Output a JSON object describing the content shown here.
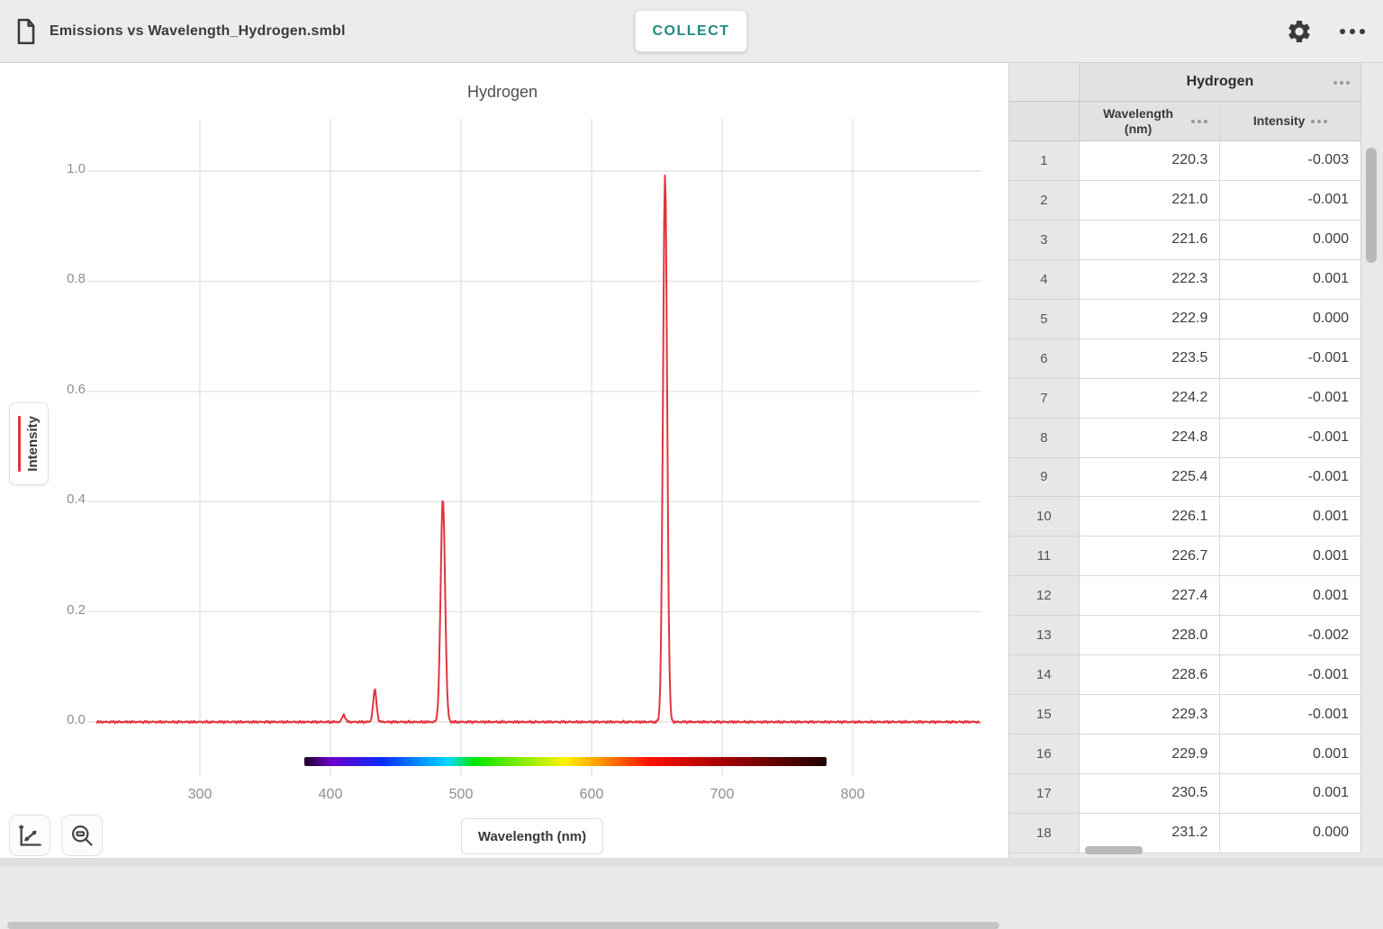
{
  "app": {
    "file_name": "Emissions vs Wavelength_Hydrogen.smbl",
    "collect_button": "COLLECT",
    "accent_teal": "#1e8a7e"
  },
  "graph": {
    "title": "Hydrogen",
    "x_axis_button": "Wavelength (nm)",
    "y_axis_button": "Intensity",
    "line_color": "#e0353f"
  },
  "chart_data": {
    "type": "line",
    "title": "Hydrogen",
    "xlabel": "Wavelength (nm)",
    "ylabel": "Intensity",
    "xlim": [
      220,
      898
    ],
    "ylim": [
      0,
      1.0
    ],
    "x_ticks": [
      300,
      400,
      500,
      600,
      700,
      800
    ],
    "x_tick_labels": [
      "300",
      "400",
      "500",
      "600",
      "700",
      "800"
    ],
    "y_ticks": [
      0,
      0.2,
      0.4,
      0.6,
      0.8,
      1.0
    ],
    "y_tick_labels": [
      "0.0",
      "0.2",
      "0.4",
      "0.6",
      "0.8",
      "1.0"
    ],
    "grid": true,
    "legend_position": "none",
    "series": [
      {
        "name": "Hydrogen",
        "color": "#e0353f",
        "baseline_intensity": 0.0,
        "noise_amplitude": 0.003,
        "peaks": [
          {
            "wavelength_nm": 410.2,
            "intensity": 0.013,
            "sigma_nm": 1.2
          },
          {
            "wavelength_nm": 434.0,
            "intensity": 0.058,
            "sigma_nm": 1.3
          },
          {
            "wavelength_nm": 486.1,
            "intensity": 0.405,
            "sigma_nm": 1.7
          },
          {
            "wavelength_nm": 656.3,
            "intensity": 0.993,
            "sigma_nm": 1.6
          }
        ]
      }
    ],
    "spectrum_bar": {
      "range_nm": [
        380,
        780
      ],
      "stops": [
        {
          "pos": 0.0,
          "color": "#1b0026"
        },
        {
          "pos": 0.05,
          "color": "#6a00c8"
        },
        {
          "pos": 0.15,
          "color": "#0b2cff"
        },
        {
          "pos": 0.275,
          "color": "#00d9ff"
        },
        {
          "pos": 0.325,
          "color": "#00e600"
        },
        {
          "pos": 0.5,
          "color": "#fdf300"
        },
        {
          "pos": 0.56,
          "color": "#ffa000"
        },
        {
          "pos": 0.66,
          "color": "#ff0f00"
        },
        {
          "pos": 0.8,
          "color": "#a50000"
        },
        {
          "pos": 1.0,
          "color": "#1e0000"
        }
      ]
    }
  },
  "table": {
    "dataset_title": "Hydrogen",
    "col_wavelength": "Wavelength (nm)",
    "col_intensity": "Intensity",
    "rows": [
      {
        "n": "1",
        "wavelength": "220.3",
        "intensity": "-0.003"
      },
      {
        "n": "2",
        "wavelength": "221.0",
        "intensity": "-0.001"
      },
      {
        "n": "3",
        "wavelength": "221.6",
        "intensity": "0.000"
      },
      {
        "n": "4",
        "wavelength": "222.3",
        "intensity": "0.001"
      },
      {
        "n": "5",
        "wavelength": "222.9",
        "intensity": "0.000"
      },
      {
        "n": "6",
        "wavelength": "223.5",
        "intensity": "-0.001"
      },
      {
        "n": "7",
        "wavelength": "224.2",
        "intensity": "-0.001"
      },
      {
        "n": "8",
        "wavelength": "224.8",
        "intensity": "-0.001"
      },
      {
        "n": "9",
        "wavelength": "225.4",
        "intensity": "-0.001"
      },
      {
        "n": "10",
        "wavelength": "226.1",
        "intensity": "0.001"
      },
      {
        "n": "11",
        "wavelength": "226.7",
        "intensity": "0.001"
      },
      {
        "n": "12",
        "wavelength": "227.4",
        "intensity": "0.001"
      },
      {
        "n": "13",
        "wavelength": "228.0",
        "intensity": "-0.002"
      },
      {
        "n": "14",
        "wavelength": "228.6",
        "intensity": "-0.001"
      },
      {
        "n": "15",
        "wavelength": "229.3",
        "intensity": "-0.001"
      },
      {
        "n": "16",
        "wavelength": "229.9",
        "intensity": "0.001"
      },
      {
        "n": "17",
        "wavelength": "230.5",
        "intensity": "0.001"
      },
      {
        "n": "18",
        "wavelength": "231.2",
        "intensity": "0.000"
      }
    ]
  }
}
